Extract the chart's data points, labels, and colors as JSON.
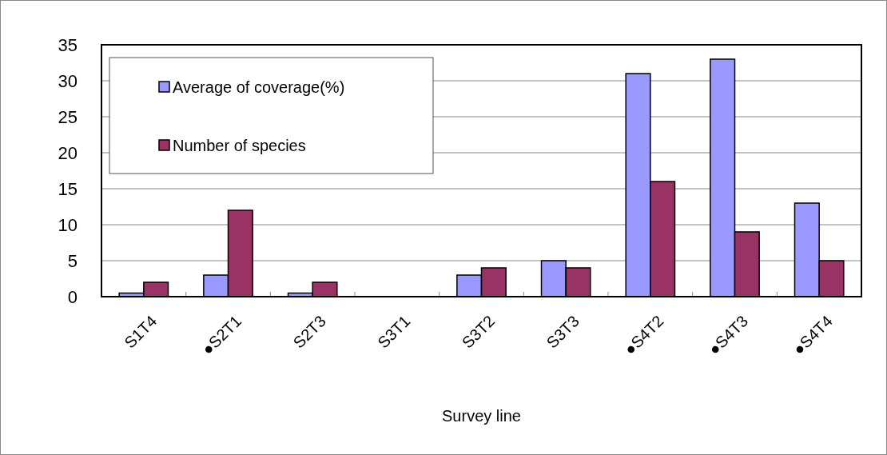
{
  "chart_data": {
    "type": "bar",
    "xlabel": "Survey line",
    "categories": [
      "S1T4",
      "●S2T1",
      "S2T3",
      "S3T1",
      "S3T2",
      "S3T3",
      "●S4T2",
      "●S4T3",
      "●S4T4"
    ],
    "series": [
      {
        "name": "Average of coverage(%)",
        "color": "#9999ff",
        "values": [
          0.5,
          3,
          0.5,
          0,
          3,
          5,
          31,
          33,
          13
        ]
      },
      {
        "name": "Number of species",
        "color": "#993366",
        "values": [
          2,
          12,
          2,
          0,
          4,
          4,
          16,
          9,
          5
        ]
      }
    ],
    "ylim": [
      0,
      35
    ],
    "yticks": [
      0,
      5,
      10,
      15,
      20,
      25,
      30,
      35
    ],
    "grid": "y",
    "legend": "top left"
  }
}
